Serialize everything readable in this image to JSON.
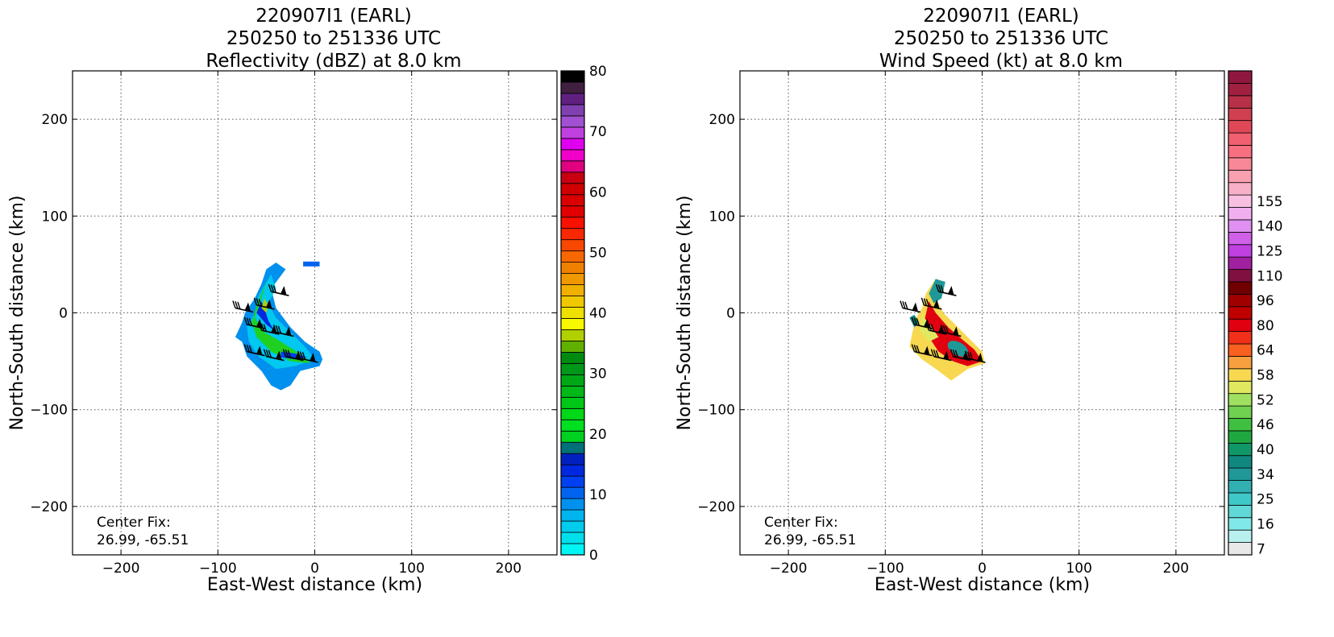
{
  "chart_data": [
    {
      "type": "heatmap",
      "title_lines": [
        "220907I1 (EARL)",
        "250250 to 251336 UTC",
        "Reflectivity (dBZ) at 8.0 km"
      ],
      "xlabel": "East-West distance (km)",
      "ylabel": "North-South distance (km)",
      "xlim": [
        -250,
        250
      ],
      "ylim": [
        -250,
        250
      ],
      "xticks": [
        -200,
        -100,
        0,
        100,
        200
      ],
      "yticks": [
        -200,
        -100,
        0,
        100,
        200
      ],
      "grid": true,
      "annotation": [
        "Center Fix:",
        "26.99, -65.51"
      ],
      "colorbar": {
        "min": 0,
        "max": 80,
        "tick_labels": [
          "0",
          "10",
          "20",
          "30",
          "40",
          "50",
          "60",
          "70",
          "80"
        ],
        "tick_values": [
          0,
          10,
          20,
          30,
          40,
          50,
          60,
          70,
          80
        ],
        "colors": [
          "#00f5f5",
          "#00e0ec",
          "#00ccee",
          "#00b4ee",
          "#0090ee",
          "#0064f0",
          "#0040f0",
          "#0028e0",
          "#0020c0",
          "#00707a",
          "#00d020",
          "#00e020",
          "#00d818",
          "#00c818",
          "#00b818",
          "#00a818",
          "#009818",
          "#008a10",
          "#60b000",
          "#b0d000",
          "#f8f800",
          "#f0e000",
          "#f0c800",
          "#f0b000",
          "#f09800",
          "#f08000",
          "#f86800",
          "#f84800",
          "#f82800",
          "#f81000",
          "#e00000",
          "#d80000",
          "#d00000",
          "#c80010",
          "#e00080",
          "#f000c8",
          "#e000f0",
          "#c040e0",
          "#a050d0",
          "#8040b0",
          "#602080",
          "#402040",
          "#000000"
        ]
      },
      "wind_barbs": [
        {
          "x": -82,
          "y": 5
        },
        {
          "x": -70,
          "y": -12
        },
        {
          "x": -55,
          "y": -18
        },
        {
          "x": -40,
          "y": -20
        },
        {
          "x": -60,
          "y": 8
        },
        {
          "x": -45,
          "y": 22
        },
        {
          "x": -70,
          "y": -40
        },
        {
          "x": -50,
          "y": -45
        },
        {
          "x": -30,
          "y": -45
        },
        {
          "x": -15,
          "y": -47
        }
      ]
    },
    {
      "type": "heatmap",
      "title_lines": [
        "220907I1 (EARL)",
        "250250 to 251336 UTC",
        "Wind Speed (kt) at 8.0 km"
      ],
      "xlabel": "East-West distance (km)",
      "ylabel": "North-South distance (km)",
      "xlim": [
        -250,
        250
      ],
      "ylim": [
        -250,
        250
      ],
      "xticks": [
        -200,
        -100,
        0,
        100,
        200
      ],
      "yticks": [
        -200,
        -100,
        0,
        100,
        200
      ],
      "grid": true,
      "annotation": [
        "Center Fix:",
        "26.99, -65.51"
      ],
      "colorbar": {
        "tick_labels": [
          "7",
          "16",
          "25",
          "34",
          "40",
          "46",
          "52",
          "58",
          "64",
          "80",
          "96",
          "110",
          "125",
          "140",
          "155"
        ],
        "tick_bins": [
          0,
          2,
          4,
          6,
          8,
          10,
          12,
          14,
          16,
          18,
          20,
          22,
          24,
          26,
          28
        ],
        "colors": [
          "#e8e8e8",
          "#b8f0f0",
          "#80e8e8",
          "#60d8d8",
          "#40c8c8",
          "#30b0b0",
          "#209898",
          "#108880",
          "#109868",
          "#20a840",
          "#40c040",
          "#70d050",
          "#a0e060",
          "#e0e860",
          "#f8d850",
          "#f8a040",
          "#f86020",
          "#f03018",
          "#e00010",
          "#c00000",
          "#a00000",
          "#700000",
          "#801040",
          "#a020a0",
          "#c040e0",
          "#d060e8",
          "#e090f0",
          "#f0b0f0",
          "#f8c0e0",
          "#f8b0c8",
          "#f8a0b0",
          "#f88898",
          "#f87080",
          "#f06070",
          "#e04858",
          "#d04050",
          "#b83048",
          "#a02040",
          "#901840"
        ]
      },
      "wind_barbs": [
        {
          "x": -82,
          "y": 5
        },
        {
          "x": -70,
          "y": -12
        },
        {
          "x": -55,
          "y": -18
        },
        {
          "x": -40,
          "y": -20
        },
        {
          "x": -60,
          "y": 8
        },
        {
          "x": -45,
          "y": 22
        },
        {
          "x": -70,
          "y": -40
        },
        {
          "x": -50,
          "y": -45
        },
        {
          "x": -30,
          "y": -45
        },
        {
          "x": -15,
          "y": -47
        }
      ]
    }
  ]
}
